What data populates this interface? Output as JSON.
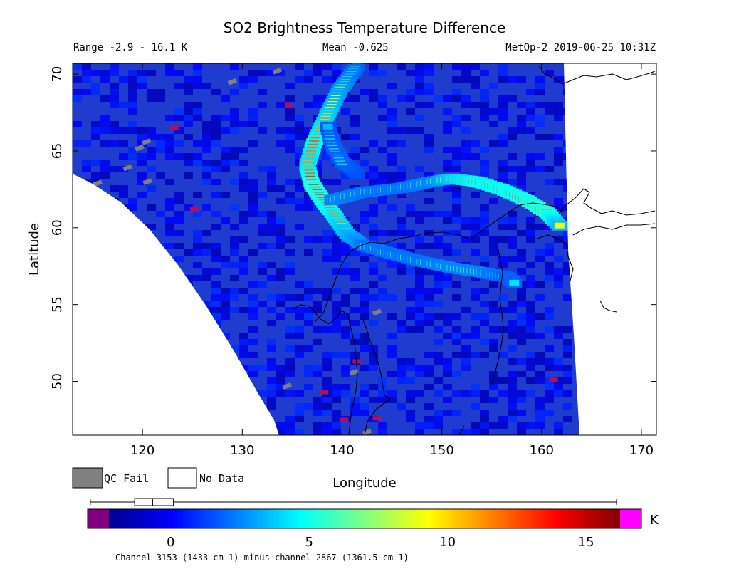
{
  "chart_data": {
    "type": "heatmap",
    "title": "SO2 Brightness Temperature Difference",
    "range_text": "Range -2.9 - 16.1 K",
    "mean_text": "Mean -0.625",
    "satellite_text": "MetOp-2 2019-06-25 10:31Z",
    "xlabel": "Longitude",
    "ylabel": "Latitude",
    "xlim": [
      113,
      171.5
    ],
    "ylim": [
      46.5,
      70.7
    ],
    "xticks": [
      120,
      130,
      140,
      150,
      160,
      170
    ],
    "yticks": [
      50,
      55,
      60,
      65,
      70
    ],
    "xtick_labels": [
      "120",
      "130",
      "140",
      "150",
      "160",
      "170"
    ],
    "ytick_labels": [
      "50",
      "55",
      "60",
      "65",
      "70"
    ],
    "legend": [
      {
        "label": "QC Fail",
        "color": "#808080"
      },
      {
        "label": "No Data",
        "color": "#ffffff"
      }
    ],
    "colorbar": {
      "range": [
        -3.0,
        17.0
      ],
      "ticks": [
        0,
        5,
        10,
        15
      ],
      "tick_labels": [
        "0",
        "5",
        "10",
        "15"
      ],
      "unit": "K",
      "under_color": "#800080",
      "over_color": "#ff00ff",
      "boxplot": {
        "whisker_low": -2.9,
        "q1": -1.3,
        "median": -0.65,
        "q3": 0.1,
        "whisker_high": 16.1
      },
      "footnote": "Channel 3153 (1433 cm-1) minus channel 2867 (1361.5 cm-1)"
    },
    "background_value": -0.625,
    "plume_paths": [
      {
        "points": [
          [
            141.5,
            70.5
          ],
          [
            139.8,
            69
          ],
          [
            138.5,
            67.3
          ],
          [
            137.2,
            65.5
          ],
          [
            136.5,
            64
          ],
          [
            137,
            62.8
          ],
          [
            138,
            61.8
          ],
          [
            139.2,
            60.8
          ],
          [
            140.5,
            59.6
          ],
          [
            142,
            58.9
          ]
        ],
        "values": [
          4,
          7,
          10,
          13,
          11,
          15,
          14,
          12,
          9,
          6
        ]
      },
      {
        "points": [
          [
            139,
            61.8
          ],
          [
            142,
            62.3
          ],
          [
            146,
            62.6
          ],
          [
            149,
            63.0
          ],
          [
            151,
            63.2
          ],
          [
            153.5,
            63.0
          ],
          [
            156,
            62.5
          ],
          [
            158.5,
            61.8
          ],
          [
            160.5,
            61.0
          ],
          [
            162,
            60.0
          ]
        ],
        "values": [
          6,
          5,
          5,
          6,
          10,
          13,
          13,
          14,
          15,
          8
        ]
      },
      {
        "points": [
          [
            142,
            58.9
          ],
          [
            145,
            58.3
          ],
          [
            148,
            57.8
          ],
          [
            151,
            57.4
          ],
          [
            154,
            57.1
          ],
          [
            156.5,
            56.8
          ],
          [
            157.5,
            56.3
          ]
        ],
        "values": [
          5,
          5,
          5,
          6,
          6,
          4,
          4
        ]
      },
      {
        "points": [
          [
            141.5,
            63.5
          ],
          [
            140,
            64.3
          ],
          [
            139,
            65.5
          ],
          [
            138.5,
            66.8
          ]
        ],
        "values": [
          3,
          4,
          4,
          3
        ]
      }
    ],
    "qc_fail_cells": [
      [
        119.7,
        65.2
      ],
      [
        120.4,
        65.6
      ],
      [
        118.5,
        63.9
      ],
      [
        120.5,
        63.0
      ],
      [
        115.5,
        62.9
      ],
      [
        129.0,
        69.5
      ],
      [
        133.5,
        70.2
      ],
      [
        143.5,
        54.5
      ],
      [
        141.2,
        50.6
      ],
      [
        134.5,
        49.7
      ],
      [
        142.5,
        46.7
      ]
    ],
    "high_cells": [
      [
        123.2,
        66.5
      ],
      [
        125.2,
        61.2
      ],
      [
        134.7,
        68.0
      ],
      [
        138.2,
        49.3
      ],
      [
        141.5,
        51.3
      ],
      [
        140.2,
        47.5
      ],
      [
        143.5,
        47.6
      ],
      [
        161.2,
        50.1
      ]
    ]
  }
}
